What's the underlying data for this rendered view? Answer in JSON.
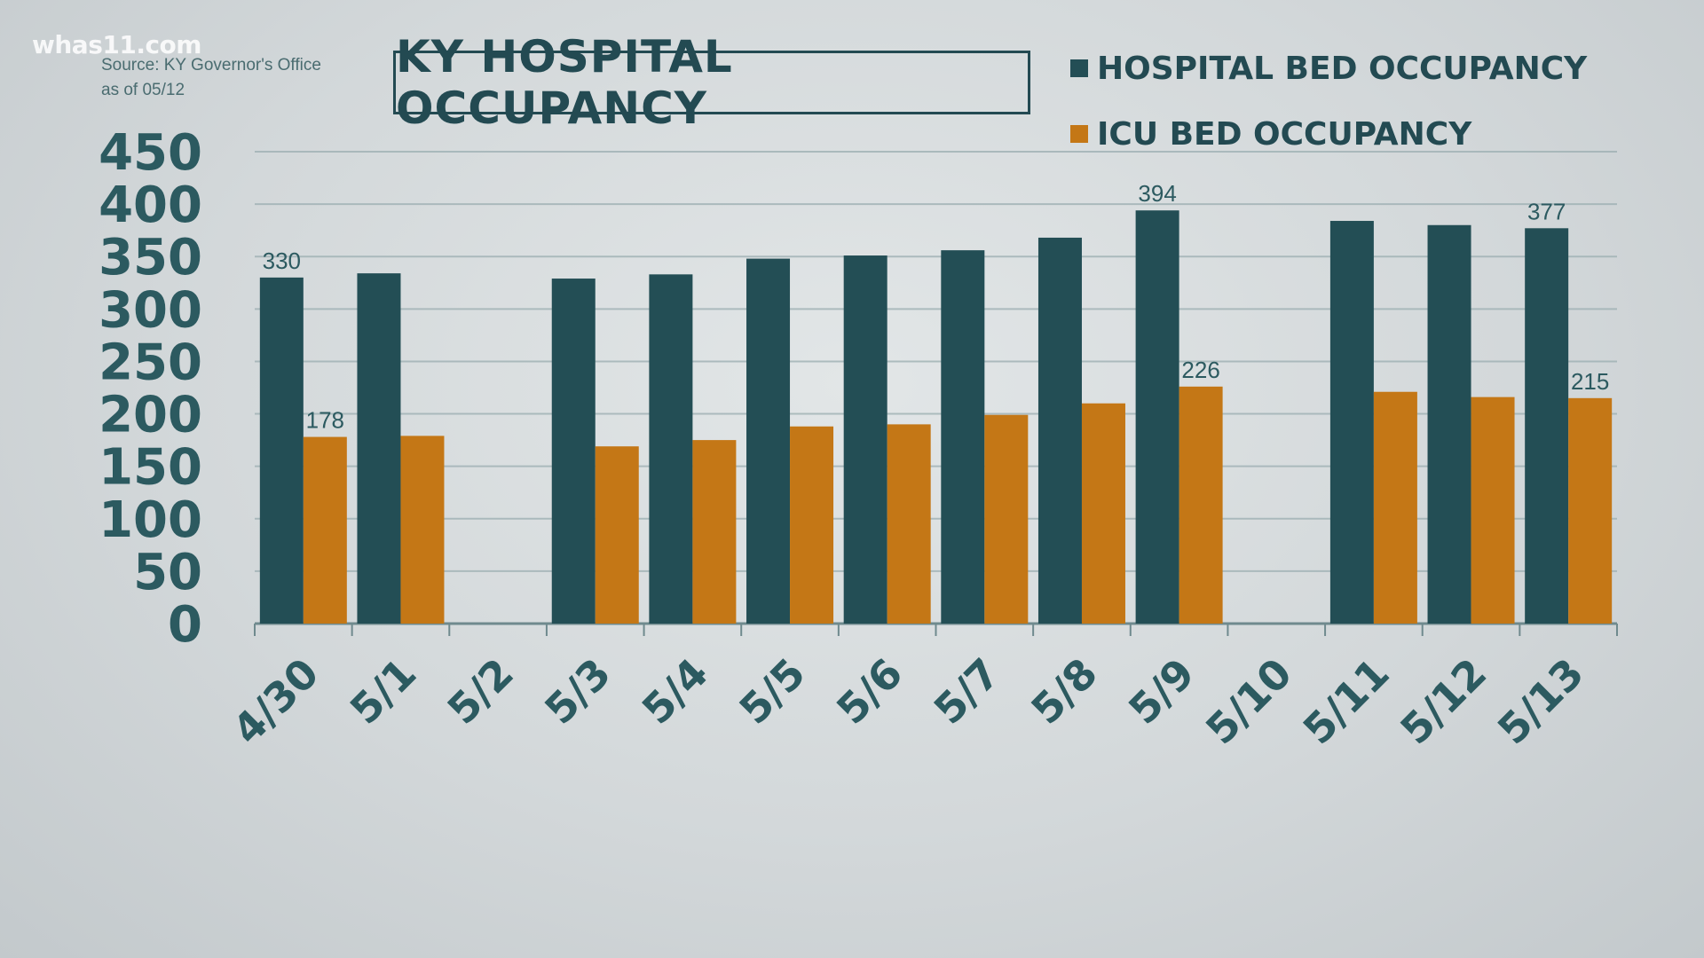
{
  "watermark": "whas11.com",
  "source_line1": "Source: KY Governor's Office",
  "source_line2": "as of 05/12",
  "colors": {
    "hospital": "#234e55",
    "icu": "#c47716",
    "text": "#2c5a60"
  },
  "chart_data": {
    "type": "bar",
    "title": "KY HOSPITAL OCCUPANCY",
    "categories": [
      "4/30",
      "5/1",
      "5/2",
      "5/3",
      "5/4",
      "5/5",
      "5/6",
      "5/7",
      "5/8",
      "5/9",
      "5/10",
      "5/11",
      "5/12",
      "5/13"
    ],
    "series": [
      {
        "name": "HOSPITAL BED OCCUPANCY",
        "values": [
          330,
          334,
          null,
          329,
          333,
          348,
          351,
          356,
          368,
          394,
          null,
          384,
          380,
          377
        ]
      },
      {
        "name": "ICU BED OCCUPANCY",
        "values": [
          178,
          179,
          null,
          169,
          175,
          188,
          190,
          199,
          210,
          226,
          null,
          221,
          216,
          215
        ]
      }
    ],
    "data_labels": [
      {
        "series": 0,
        "index": 0,
        "text": "330"
      },
      {
        "series": 1,
        "index": 0,
        "text": "178"
      },
      {
        "series": 0,
        "index": 9,
        "text": "394"
      },
      {
        "series": 1,
        "index": 9,
        "text": "226"
      },
      {
        "series": 0,
        "index": 13,
        "text": "377"
      },
      {
        "series": 1,
        "index": 13,
        "text": "215"
      }
    ],
    "ylim": [
      0,
      450
    ],
    "yticks": [
      "0",
      "50",
      "100",
      "150",
      "200",
      "250",
      "300",
      "350",
      "400",
      "450"
    ],
    "grid": true,
    "legend": "top-right"
  }
}
